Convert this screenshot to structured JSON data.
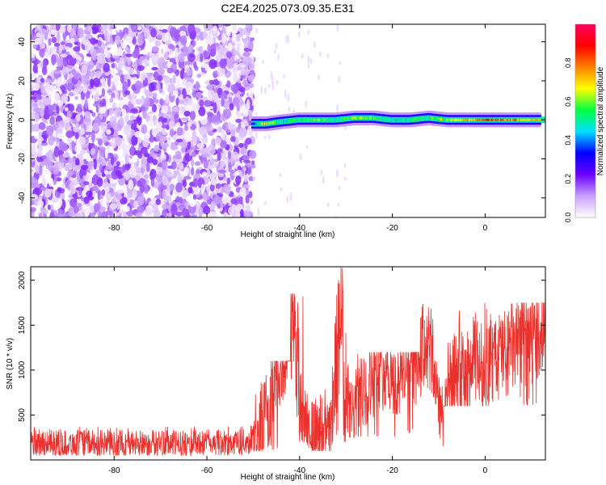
{
  "title": "C2E4.2025.073.09.35.E31",
  "colors": {
    "spectro_bg": "#ffffff",
    "snr_line": "#e8312c",
    "axis": "#000000"
  },
  "chart_data": [
    {
      "type": "heatmap",
      "title": "C2E4.2025.073.09.35.E31",
      "xlabel": "Height of straight line (km)",
      "ylabel": "Frequency (Hz)",
      "xlim": [
        -98,
        13
      ],
      "ylim": [
        -50,
        49
      ],
      "xticks": [
        -80,
        -60,
        -40,
        -20,
        0
      ],
      "yticks": [
        -40,
        -20,
        0,
        20,
        40
      ],
      "colorbar": {
        "label": "Normalized spectral amplitude",
        "range": [
          0,
          1
        ],
        "ticks": [
          "0.0",
          "0.2",
          "0.4",
          "0.6",
          "0.8"
        ],
        "colormap": [
          "#ffffff",
          "#c9a0ff",
          "#6a00ff",
          "#0000ff",
          "#00e0ff",
          "#00ff40",
          "#ffff00",
          "#ff8000",
          "#ff0000",
          "#ff0060"
        ]
      },
      "noise_region": {
        "x_from": -98,
        "x_to": -50,
        "amplitude_range": [
          0.0,
          0.2
        ]
      },
      "band": {
        "frequency_hz": 0,
        "points": [
          {
            "x": -50,
            "f": -2,
            "amp": 0.25
          },
          {
            "x": -47,
            "f": -2,
            "amp": 0.75
          },
          {
            "x": -44,
            "f": -1,
            "amp": 0.45
          },
          {
            "x": -40,
            "f": 0,
            "amp": 0.55
          },
          {
            "x": -36,
            "f": 0,
            "amp": 0.6
          },
          {
            "x": -32,
            "f": 0,
            "amp": 0.5
          },
          {
            "x": -28,
            "f": 1,
            "amp": 0.65
          },
          {
            "x": -24,
            "f": 1,
            "amp": 0.55
          },
          {
            "x": -20,
            "f": 0,
            "amp": 0.45
          },
          {
            "x": -16,
            "f": 0,
            "amp": 0.5
          },
          {
            "x": -12,
            "f": 1,
            "amp": 0.55
          },
          {
            "x": -8,
            "f": 0,
            "amp": 0.6
          },
          {
            "x": -4,
            "f": 0,
            "amp": 0.7
          },
          {
            "x": 0,
            "f": 0,
            "amp": 0.85
          },
          {
            "x": 4,
            "f": 0,
            "amp": 0.8
          },
          {
            "x": 8,
            "f": 0,
            "amp": 0.75
          },
          {
            "x": 12,
            "f": 0,
            "amp": 0.7
          }
        ]
      }
    },
    {
      "type": "line",
      "xlabel": "Height of straight line (km)",
      "ylabel": "SNR (10 * v/v)",
      "xlim": [
        -98,
        13
      ],
      "ylim": [
        0,
        2150
      ],
      "xticks": [
        -80,
        -60,
        -40,
        -20,
        0
      ],
      "yticks": [
        500,
        1000,
        1500,
        2000
      ],
      "series": [
        {
          "x": [
            -98,
            -95,
            -90,
            -85,
            -80,
            -75,
            -70,
            -65,
            -60,
            -55,
            -51,
            -49,
            -47,
            -45,
            -43,
            -41.5,
            -40.5,
            -39,
            -37,
            -35,
            -33,
            -31.5,
            -31,
            -30.5,
            -29,
            -27,
            -25,
            -23,
            -21,
            -19,
            -17,
            -15,
            -13,
            -12,
            -11,
            -10,
            -9,
            -8,
            -6,
            -4,
            -2,
            0,
            2,
            4,
            6,
            8,
            10,
            12,
            13
          ],
          "y": [
            180,
            200,
            185,
            190,
            175,
            185,
            190,
            180,
            195,
            185,
            200,
            350,
            550,
            900,
            1100,
            1750,
            900,
            500,
            350,
            250,
            400,
            1300,
            2100,
            600,
            450,
            700,
            850,
            950,
            1000,
            800,
            1100,
            1000,
            1300,
            1250,
            1000,
            700,
            400,
            800,
            950,
            900,
            1150,
            1000,
            1100,
            1200,
            1250,
            1300,
            1350,
            1450,
            1600
          ],
          "envelope": [
            {
              "from": -98,
              "to": -50,
              "min": 50,
              "max": 380
            },
            {
              "from": -50,
              "to": -42,
              "min": 100,
              "max": 1100
            },
            {
              "from": -42,
              "to": -39,
              "min": 200,
              "max": 1850
            },
            {
              "from": -39,
              "to": -33,
              "min": 100,
              "max": 800
            },
            {
              "from": -33,
              "to": -30,
              "min": 200,
              "max": 2150
            },
            {
              "from": -30,
              "to": -14,
              "min": 250,
              "max": 1200
            },
            {
              "from": -14,
              "to": -11,
              "min": 700,
              "max": 1850
            },
            {
              "from": -11,
              "to": -9,
              "min": 150,
              "max": 1100
            },
            {
              "from": -9,
              "to": 13,
              "min": 600,
              "max": 1750
            }
          ]
        }
      ]
    }
  ]
}
